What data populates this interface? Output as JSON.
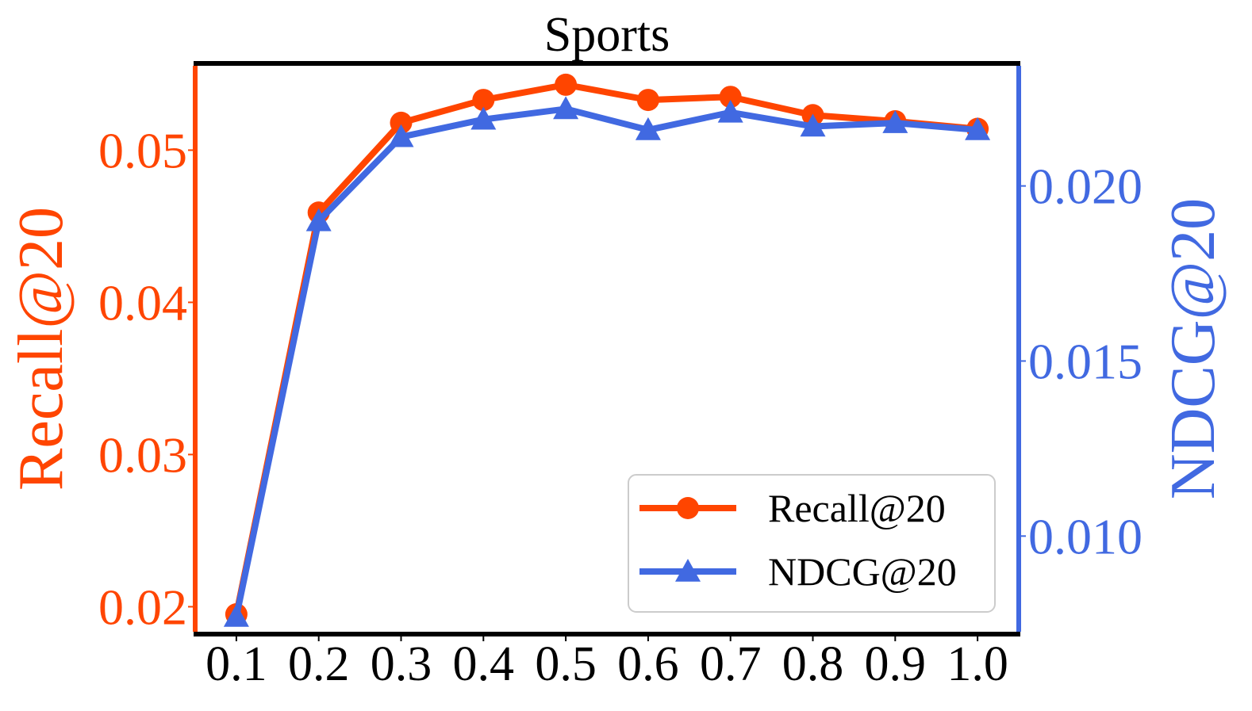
{
  "chart_data": {
    "type": "line",
    "title": "Sports",
    "x": [
      0.1,
      0.2,
      0.3,
      0.4,
      0.5,
      0.6,
      0.7,
      0.8,
      0.9,
      1.0
    ],
    "x_tick_labels": [
      "0.1",
      "0.2",
      "0.3",
      "0.4",
      "0.5",
      "0.6",
      "0.7",
      "0.8",
      "0.9",
      "1.0"
    ],
    "xlim": [
      0.05,
      1.05
    ],
    "y_left": {
      "label": "Recall@20",
      "ylim": [
        0.0182,
        0.0557
      ],
      "ticks": [
        0.02,
        0.03,
        0.04,
        0.05
      ],
      "tick_labels": [
        "0.02",
        "0.03",
        "0.04",
        "0.05"
      ],
      "color": "#FF4500"
    },
    "y_right": {
      "label": "NDCG@20",
      "ylim": [
        0.0072,
        0.0235
      ],
      "ticks": [
        0.01,
        0.015,
        0.02
      ],
      "tick_labels": [
        "0.010",
        "0.015",
        "0.020"
      ],
      "color": "#4169E1"
    },
    "series": [
      {
        "name": "Recall@20",
        "axis": "left",
        "marker": "circle",
        "color": "#FF4500",
        "values": [
          0.0195,
          0.0459,
          0.0518,
          0.0533,
          0.0543,
          0.0533,
          0.0535,
          0.0523,
          0.0519,
          0.0514
        ]
      },
      {
        "name": "NDCG@20",
        "axis": "right",
        "marker": "triangle",
        "color": "#4169E1",
        "values": [
          0.0077,
          0.019,
          0.0214,
          0.0219,
          0.0222,
          0.0216,
          0.0221,
          0.0217,
          0.0218,
          0.0216
        ]
      }
    ],
    "legend": {
      "position": "lower-right"
    },
    "grid": false
  }
}
